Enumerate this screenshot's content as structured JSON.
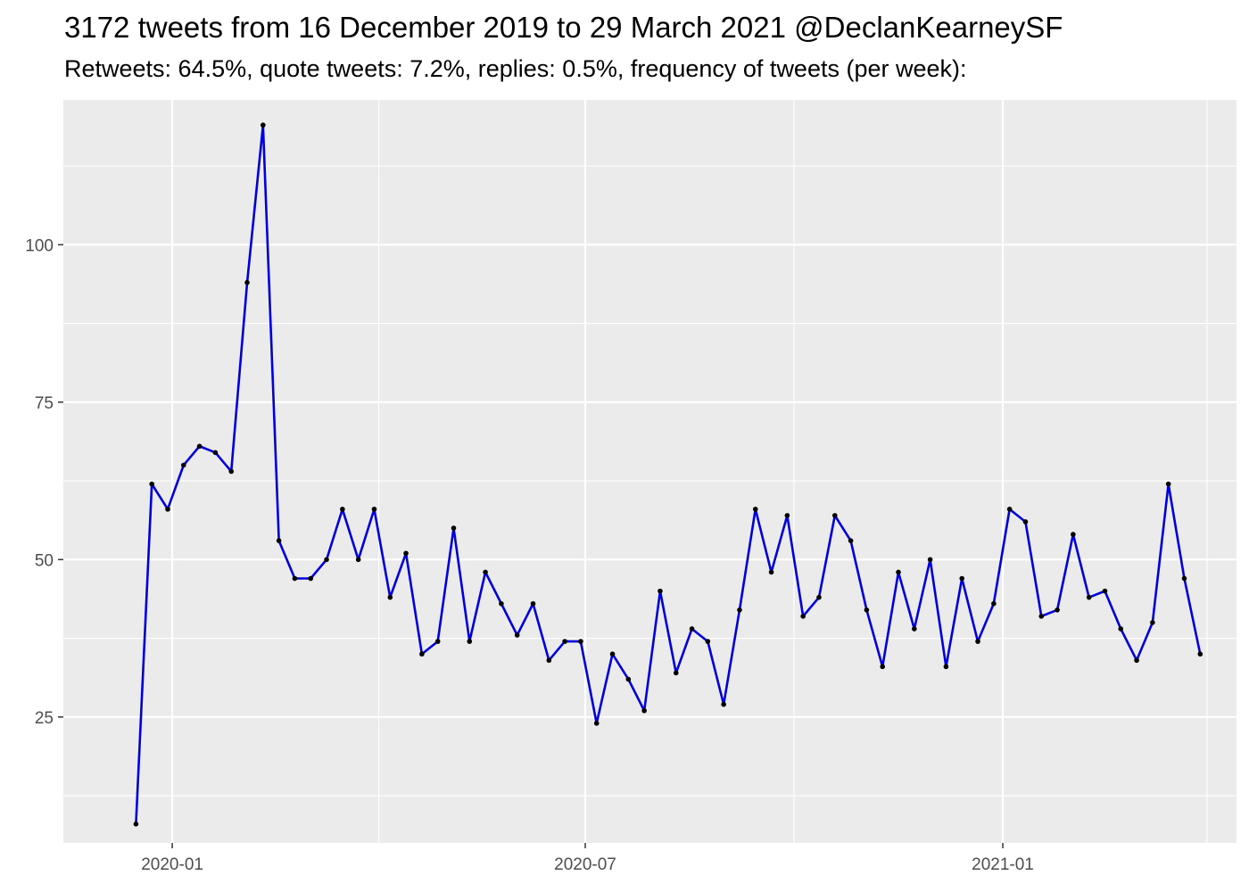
{
  "chart_data": {
    "type": "line",
    "title": "3172 tweets from 16 December 2019 to 29 March 2021 @DeclanKearneySF",
    "subtitle": "Retweets: 64.5%, quote tweets: 7.2%, replies: 0.5%, frequency of tweets (per week):",
    "xlabel": "",
    "ylabel": "",
    "x_ticks": [
      {
        "date": "2020-01-01",
        "label": "2020-01"
      },
      {
        "date": "2020-07-01",
        "label": "2020-07"
      },
      {
        "date": "2021-01-01",
        "label": "2021-01"
      }
    ],
    "x_minor_ticks": [
      "2019-10-01",
      "2020-04-01",
      "2020-10-01",
      "2021-04-01"
    ],
    "xlim": [
      "2019-11-14",
      "2021-04-14"
    ],
    "y_ticks": [
      25,
      50,
      75,
      100
    ],
    "y_minor_ticks": [
      12.5,
      37.5,
      62.5,
      87.5,
      112.5
    ],
    "ylim": [
      5,
      123
    ],
    "grid": true,
    "line_color": "#0000dd",
    "point_color": "#000000",
    "panel_color": "#ebebeb",
    "series": [
      {
        "x": [
          "2019-12-16",
          "2019-12-23",
          "2019-12-30",
          "2020-01-06",
          "2020-01-13",
          "2020-01-20",
          "2020-01-27",
          "2020-02-03",
          "2020-02-10",
          "2020-02-17",
          "2020-02-24",
          "2020-03-02",
          "2020-03-09",
          "2020-03-16",
          "2020-03-23",
          "2020-03-30",
          "2020-04-06",
          "2020-04-13",
          "2020-04-20",
          "2020-04-27",
          "2020-05-04",
          "2020-05-11",
          "2020-05-18",
          "2020-05-25",
          "2020-06-01",
          "2020-06-08",
          "2020-06-15",
          "2020-06-22",
          "2020-06-29",
          "2020-07-06",
          "2020-07-13",
          "2020-07-20",
          "2020-07-27",
          "2020-08-03",
          "2020-08-10",
          "2020-08-17",
          "2020-08-24",
          "2020-08-31",
          "2020-09-07",
          "2020-09-14",
          "2020-09-21",
          "2020-09-28",
          "2020-10-05",
          "2020-10-12",
          "2020-10-19",
          "2020-10-26",
          "2020-11-02",
          "2020-11-09",
          "2020-11-16",
          "2020-11-23",
          "2020-11-30",
          "2020-12-07",
          "2020-12-14",
          "2020-12-21",
          "2020-12-28",
          "2021-01-04",
          "2021-01-11",
          "2021-01-18",
          "2021-01-25",
          "2021-02-01",
          "2021-02-08",
          "2021-02-15",
          "2021-02-22",
          "2021-03-01",
          "2021-03-08",
          "2021-03-15",
          "2021-03-22",
          "2021-03-29"
        ],
        "y": [
          8,
          62,
          58,
          65,
          68,
          67,
          64,
          94,
          119,
          53,
          47,
          47,
          50,
          58,
          50,
          58,
          44,
          51,
          35,
          37,
          55,
          37,
          48,
          43,
          38,
          43,
          34,
          37,
          37,
          24,
          35,
          31,
          26,
          45,
          32,
          39,
          37,
          27,
          42,
          58,
          48,
          57,
          41,
          44,
          57,
          53,
          42,
          33,
          48,
          39,
          50,
          33,
          47,
          37,
          43,
          58,
          56,
          41,
          42,
          54,
          44,
          45,
          39,
          34,
          40,
          62,
          47,
          35
        ]
      }
    ]
  }
}
